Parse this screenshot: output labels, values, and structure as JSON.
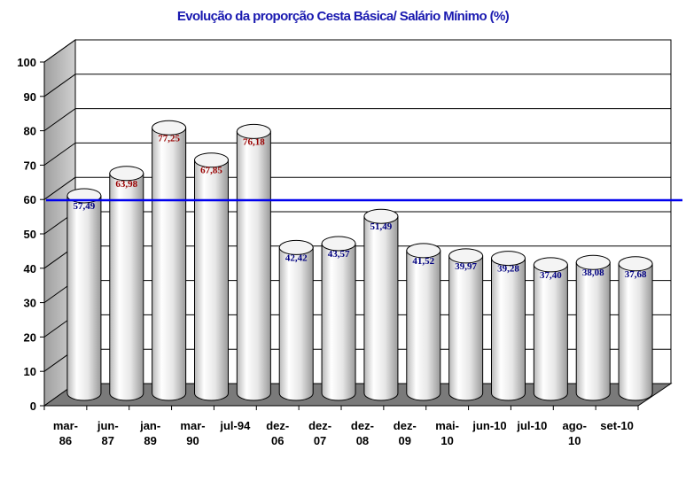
{
  "chart_data": {
    "type": "bar",
    "title": "Evolução da proporção Cesta Básica/ Salário Mínimo (%)",
    "categories": [
      [
        "mar-",
        "86"
      ],
      [
        "jun-",
        "87"
      ],
      [
        "jan-",
        "89"
      ],
      [
        "mar-",
        "90"
      ],
      [
        "jul-94"
      ],
      [
        "dez-",
        "06"
      ],
      [
        "dez-",
        "07"
      ],
      [
        "dez-",
        "08"
      ],
      [
        "dez-",
        "09"
      ],
      [
        "mai-",
        "10"
      ],
      [
        "jun-10"
      ],
      [
        "jul-10"
      ],
      [
        "ago-",
        "10"
      ],
      [
        "set-10"
      ]
    ],
    "values": [
      57.49,
      63.98,
      77.25,
      67.85,
      76.18,
      42.42,
      43.57,
      51.49,
      41.52,
      39.97,
      39.28,
      37.4,
      38.08,
      37.68
    ],
    "data_labels": [
      "57,49",
      "63,98",
      "77,25",
      "67,85",
      "76,18",
      "42,42",
      "43,57",
      "51,49",
      "41,52",
      "39,97",
      "39,28",
      "37,40",
      "38,08",
      "37,68"
    ],
    "label_colors": [
      "#000080",
      "#990000",
      "#990000",
      "#990000",
      "#990000",
      "#000080",
      "#000080",
      "#000080",
      "#000080",
      "#000080",
      "#000080",
      "#000080",
      "#000080",
      "#000080"
    ],
    "yticks": [
      0,
      10,
      20,
      30,
      40,
      50,
      60,
      70,
      80,
      90,
      100
    ],
    "ylim": [
      0,
      100
    ],
    "reference_line": 57.49,
    "reference_line_color": "#0000ee",
    "bar_style": "3d-cylinder",
    "grid": true,
    "xlabel": "",
    "ylabel": ""
  }
}
